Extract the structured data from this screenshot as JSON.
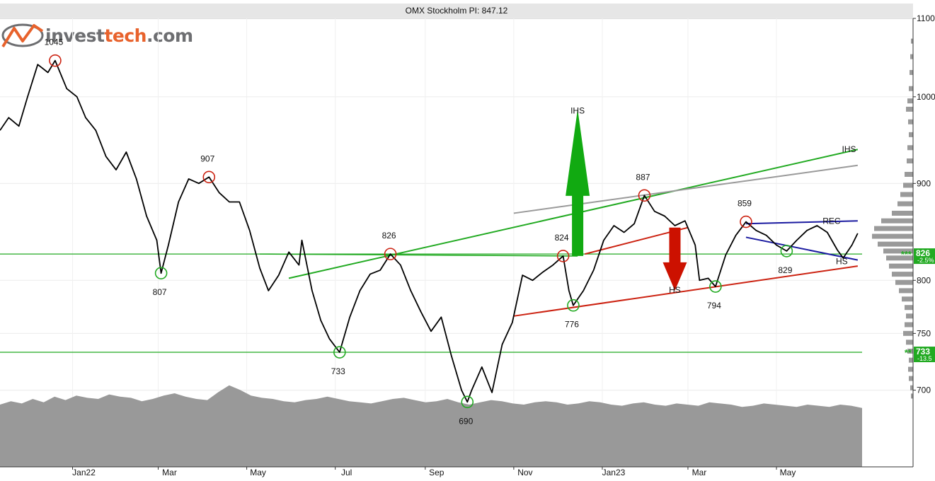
{
  "logo": {
    "part1": "invest",
    "part2": "tech",
    "part3": ".com",
    "icon": "investtech-logo-icon"
  },
  "colors": {
    "price": "#000000",
    "support": "#22aa22",
    "resistance": "#cc2211",
    "channel": "#1a1aa0",
    "grey_line": "#9a9a9a",
    "volume": "#999999",
    "histogram": "#9a9a9a",
    "arrow_up": "#11aa11",
    "arrow_down": "#cc1100"
  },
  "chart_data": {
    "type": "line",
    "title": "OMX Stockholm PI: 847.12",
    "yscale": "log",
    "ylim": [
      660,
      1100
    ],
    "grid": true,
    "y_ticks": [
      {
        "label": "1100",
        "value": 1100
      },
      {
        "label": "1000",
        "value": 1000
      },
      {
        "label": "900",
        "value": 900
      },
      {
        "label": "800",
        "value": 800
      },
      {
        "label": "750",
        "value": 750
      },
      {
        "label": "700",
        "value": 700
      }
    ],
    "x_ticks": [
      {
        "label": "Jan22",
        "date": "2022-01-01"
      },
      {
        "label": "Mar",
        "date": "2022-03-01"
      },
      {
        "label": "May",
        "date": "2022-05-01"
      },
      {
        "label": "Jul",
        "date": "2022-07-01"
      },
      {
        "label": "Sep",
        "date": "2022-09-01"
      },
      {
        "label": "Nov",
        "date": "2022-11-01"
      },
      {
        "label": "Jan23",
        "date": "2023-01-01"
      },
      {
        "label": "Mar",
        "date": "2023-03-01"
      },
      {
        "label": "May",
        "date": "2023-05-01"
      }
    ],
    "series": [
      {
        "values": [
          [
            "2021-11-12",
            960
          ],
          [
            "2021-11-18",
            975
          ],
          [
            "2021-11-25",
            965
          ],
          [
            "2021-12-01",
            1000
          ],
          [
            "2021-12-08",
            1040
          ],
          [
            "2021-12-15",
            1030
          ],
          [
            "2021-12-20",
            1045
          ],
          [
            "2021-12-28",
            1010
          ],
          [
            "2022-01-04",
            1000
          ],
          [
            "2022-01-10",
            975
          ],
          [
            "2022-01-17",
            960
          ],
          [
            "2022-01-24",
            930
          ],
          [
            "2022-01-31",
            915
          ],
          [
            "2022-02-07",
            935
          ],
          [
            "2022-02-14",
            905
          ],
          [
            "2022-02-21",
            865
          ],
          [
            "2022-02-28",
            840
          ],
          [
            "2022-03-03",
            807
          ],
          [
            "2022-03-08",
            835
          ],
          [
            "2022-03-15",
            880
          ],
          [
            "2022-03-22",
            905
          ],
          [
            "2022-03-29",
            900
          ],
          [
            "2022-04-05",
            907
          ],
          [
            "2022-04-12",
            890
          ],
          [
            "2022-04-19",
            880
          ],
          [
            "2022-04-26",
            880
          ],
          [
            "2022-05-03",
            850
          ],
          [
            "2022-05-10",
            812
          ],
          [
            "2022-05-16",
            790
          ],
          [
            "2022-05-23",
            805
          ],
          [
            "2022-05-30",
            828
          ],
          [
            "2022-06-06",
            815
          ],
          [
            "2022-06-08",
            840
          ],
          [
            "2022-06-15",
            790
          ],
          [
            "2022-06-21",
            762
          ],
          [
            "2022-06-27",
            745
          ],
          [
            "2022-07-04",
            733
          ],
          [
            "2022-07-11",
            765
          ],
          [
            "2022-07-18",
            790
          ],
          [
            "2022-07-25",
            806
          ],
          [
            "2022-08-01",
            810
          ],
          [
            "2022-08-08",
            826
          ],
          [
            "2022-08-15",
            815
          ],
          [
            "2022-08-22",
            790
          ],
          [
            "2022-08-29",
            770
          ],
          [
            "2022-09-05",
            752
          ],
          [
            "2022-09-12",
            765
          ],
          [
            "2022-09-19",
            730
          ],
          [
            "2022-09-26",
            700
          ],
          [
            "2022-09-30",
            690
          ],
          [
            "2022-10-03",
            700
          ],
          [
            "2022-10-10",
            720
          ],
          [
            "2022-10-17",
            698
          ],
          [
            "2022-10-24",
            740
          ],
          [
            "2022-10-31",
            760
          ],
          [
            "2022-11-07",
            805
          ],
          [
            "2022-11-14",
            800
          ],
          [
            "2022-11-21",
            808
          ],
          [
            "2022-11-28",
            815
          ],
          [
            "2022-12-05",
            824
          ],
          [
            "2022-12-09",
            790
          ],
          [
            "2022-12-12",
            776
          ],
          [
            "2022-12-19",
            790
          ],
          [
            "2022-12-26",
            810
          ],
          [
            "2023-01-02",
            840
          ],
          [
            "2023-01-09",
            855
          ],
          [
            "2023-01-16",
            848
          ],
          [
            "2023-01-23",
            857
          ],
          [
            "2023-01-30",
            887
          ],
          [
            "2023-02-06",
            870
          ],
          [
            "2023-02-13",
            865
          ],
          [
            "2023-02-20",
            855
          ],
          [
            "2023-02-27",
            860
          ],
          [
            "2023-03-06",
            835
          ],
          [
            "2023-03-09",
            800
          ],
          [
            "2023-03-15",
            802
          ],
          [
            "2023-03-20",
            794
          ],
          [
            "2023-03-27",
            825
          ],
          [
            "2023-04-03",
            845
          ],
          [
            "2023-04-10",
            859
          ],
          [
            "2023-04-17",
            850
          ],
          [
            "2023-04-24",
            845
          ],
          [
            "2023-05-01",
            835
          ],
          [
            "2023-05-08",
            829
          ],
          [
            "2023-05-15",
            840
          ],
          [
            "2023-05-22",
            850
          ],
          [
            "2023-05-29",
            855
          ],
          [
            "2023-06-05",
            848
          ],
          [
            "2023-06-12",
            830
          ],
          [
            "2023-06-16",
            822
          ],
          [
            "2023-06-22",
            835
          ],
          [
            "2023-06-26",
            847
          ]
        ]
      }
    ],
    "pivots": [
      {
        "date": "2021-12-20",
        "value": 1045,
        "label": "1045",
        "type": "top"
      },
      {
        "date": "2022-03-03",
        "value": 807,
        "label": "807",
        "type": "bottom"
      },
      {
        "date": "2022-04-05",
        "value": 907,
        "label": "907",
        "type": "top"
      },
      {
        "date": "2022-07-04",
        "value": 733,
        "label": "733",
        "type": "bottom"
      },
      {
        "date": "2022-08-08",
        "value": 826,
        "label": "826",
        "type": "top"
      },
      {
        "date": "2022-09-30",
        "value": 690,
        "label": "690",
        "type": "bottom"
      },
      {
        "date": "2022-12-05",
        "value": 824,
        "label": "824",
        "type": "top"
      },
      {
        "date": "2022-12-12",
        "value": 776,
        "label": "776",
        "type": "bottom"
      },
      {
        "date": "2023-01-30",
        "value": 887,
        "label": "887",
        "type": "top"
      },
      {
        "date": "2023-03-20",
        "value": 794,
        "label": "794",
        "type": "bottom"
      },
      {
        "date": "2023-04-10",
        "value": 859,
        "label": "859",
        "type": "top"
      },
      {
        "date": "2023-05-08",
        "value": 829,
        "label": "829",
        "type": "bottom"
      }
    ],
    "trend_lines": [
      {
        "kind": "support-horizontal",
        "points": [
          [
            "2021-11-12",
            826
          ],
          [
            "2023-06-29",
            826
          ]
        ]
      },
      {
        "kind": "support-horizontal",
        "points": [
          [
            "2021-11-12",
            733
          ],
          [
            "2023-06-29",
            733
          ]
        ]
      },
      {
        "kind": "neckline",
        "points": [
          [
            "2022-05-10",
            826
          ],
          [
            "2022-12-15",
            824
          ]
        ]
      },
      {
        "kind": "ihs-line",
        "points": [
          [
            "2022-05-30",
            802
          ],
          [
            "2023-06-26",
            938
          ]
        ]
      },
      {
        "kind": "grey-line",
        "points": [
          [
            "2022-11-01",
            868
          ],
          [
            "2023-06-26",
            920
          ]
        ]
      },
      {
        "kind": "red-support",
        "points": [
          [
            "2022-11-01",
            766
          ],
          [
            "2023-06-26",
            814
          ]
        ]
      },
      {
        "kind": "red-neckline",
        "points": [
          [
            "2022-12-20",
            826
          ],
          [
            "2023-03-01",
            853
          ]
        ]
      },
      {
        "kind": "channel-top",
        "points": [
          [
            "2023-04-10",
            857
          ],
          [
            "2023-06-26",
            860
          ]
        ]
      },
      {
        "kind": "channel-bottom",
        "points": [
          [
            "2023-04-10",
            843
          ],
          [
            "2023-06-26",
            820
          ]
        ]
      }
    ],
    "formation_labels": [
      {
        "text": "IHS",
        "date": "2022-12-15",
        "value": 980
      },
      {
        "text": "IHS",
        "date": "2023-06-20",
        "value": 935
      },
      {
        "text": "HS",
        "date": "2023-02-20",
        "value": 788
      },
      {
        "text": "HS",
        "date": "2023-06-15",
        "value": 816
      },
      {
        "text": "REC",
        "date": "2023-06-08",
        "value": 857
      }
    ],
    "arrows": [
      {
        "direction": "up",
        "date": "2022-12-15",
        "from": 824,
        "to": 985
      },
      {
        "direction": "down",
        "date": "2023-02-20",
        "from": 853,
        "to": 790
      }
    ],
    "level_markers": [
      {
        "value": 826,
        "label": "826",
        "change": "-2.5%",
        "stars": "***"
      },
      {
        "value": 733,
        "label": "733",
        "change": "-13.5",
        "stars": "**"
      }
    ],
    "volume": [
      55,
      58,
      56,
      60,
      57,
      62,
      59,
      63,
      61,
      60,
      64,
      62,
      61,
      58,
      60,
      63,
      65,
      62,
      60,
      59,
      66,
      72,
      68,
      63,
      61,
      60,
      58,
      57,
      59,
      60,
      62,
      60,
      58,
      57,
      56,
      58,
      60,
      61,
      59,
      57,
      58,
      60,
      57,
      55,
      57,
      59,
      58,
      56,
      55,
      57,
      58,
      57,
      55,
      56,
      58,
      57,
      55,
      54,
      56,
      57,
      55,
      54,
      56,
      55,
      54,
      57,
      56,
      55,
      53,
      54,
      56,
      55,
      54,
      53,
      55,
      54,
      53,
      55,
      54,
      52
    ],
    "histogram": [
      [
        1070,
        3
      ],
      [
        1050,
        4
      ],
      [
        1030,
        5
      ],
      [
        1010,
        6
      ],
      [
        995,
        8
      ],
      [
        985,
        10
      ],
      [
        970,
        7
      ],
      [
        955,
        6
      ],
      [
        940,
        8
      ],
      [
        925,
        9
      ],
      [
        910,
        12
      ],
      [
        898,
        14
      ],
      [
        888,
        18
      ],
      [
        878,
        22
      ],
      [
        868,
        30
      ],
      [
        860,
        45
      ],
      [
        852,
        55
      ],
      [
        844,
        58
      ],
      [
        836,
        50
      ],
      [
        829,
        42
      ],
      [
        822,
        38
      ],
      [
        814,
        34
      ],
      [
        806,
        30
      ],
      [
        798,
        25
      ],
      [
        790,
        20
      ],
      [
        782,
        16
      ],
      [
        774,
        12
      ],
      [
        766,
        10
      ],
      [
        758,
        12
      ],
      [
        750,
        14
      ],
      [
        742,
        10
      ],
      [
        734,
        8
      ],
      [
        726,
        6
      ],
      [
        718,
        7
      ],
      [
        710,
        6
      ],
      [
        702,
        4
      ],
      [
        695,
        3
      ]
    ]
  }
}
